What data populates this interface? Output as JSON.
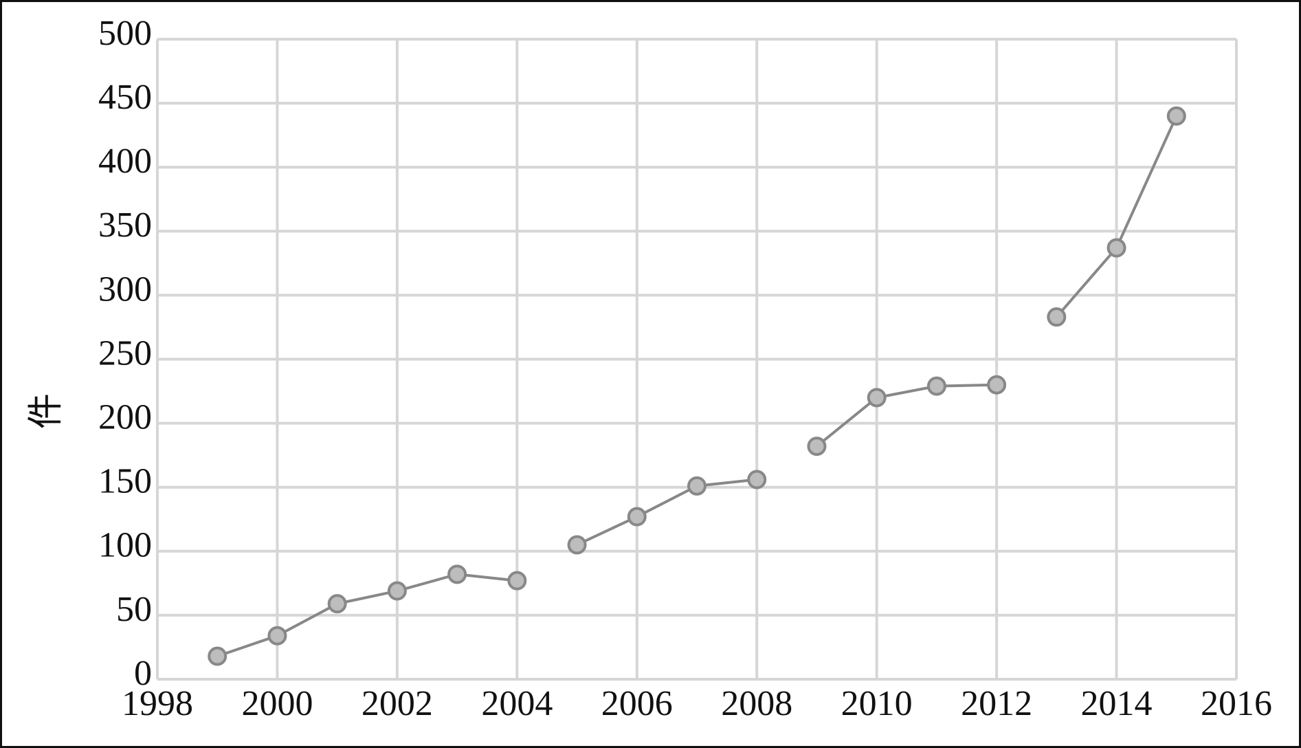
{
  "chart_data": {
    "type": "line",
    "y_label": "件",
    "series": [
      {
        "color": "#888888",
        "x": [
          1999,
          2000,
          2001,
          2002,
          2003,
          2004
        ],
        "values": [
          18,
          34,
          59,
          69,
          82,
          77
        ]
      },
      {
        "color": "#888888",
        "x": [
          2005,
          2006,
          2007,
          2008
        ],
        "values": [
          105,
          127,
          151,
          156
        ]
      },
      {
        "color": "#888888",
        "x": [
          2009,
          2010,
          2011,
          2012
        ],
        "values": [
          182,
          220,
          229,
          230
        ]
      },
      {
        "color": "#888888",
        "x": [
          2013,
          2014,
          2015
        ],
        "values": [
          283,
          337,
          440
        ]
      }
    ],
    "xlim": [
      1998,
      2016
    ],
    "xticks": [
      1998,
      2000,
      2002,
      2004,
      2006,
      2008,
      2010,
      2012,
      2014,
      2016
    ],
    "ylim": [
      0,
      500
    ],
    "yticks": [
      0,
      50,
      100,
      150,
      200,
      250,
      300,
      350,
      400,
      450,
      500
    ],
    "grid": true
  }
}
